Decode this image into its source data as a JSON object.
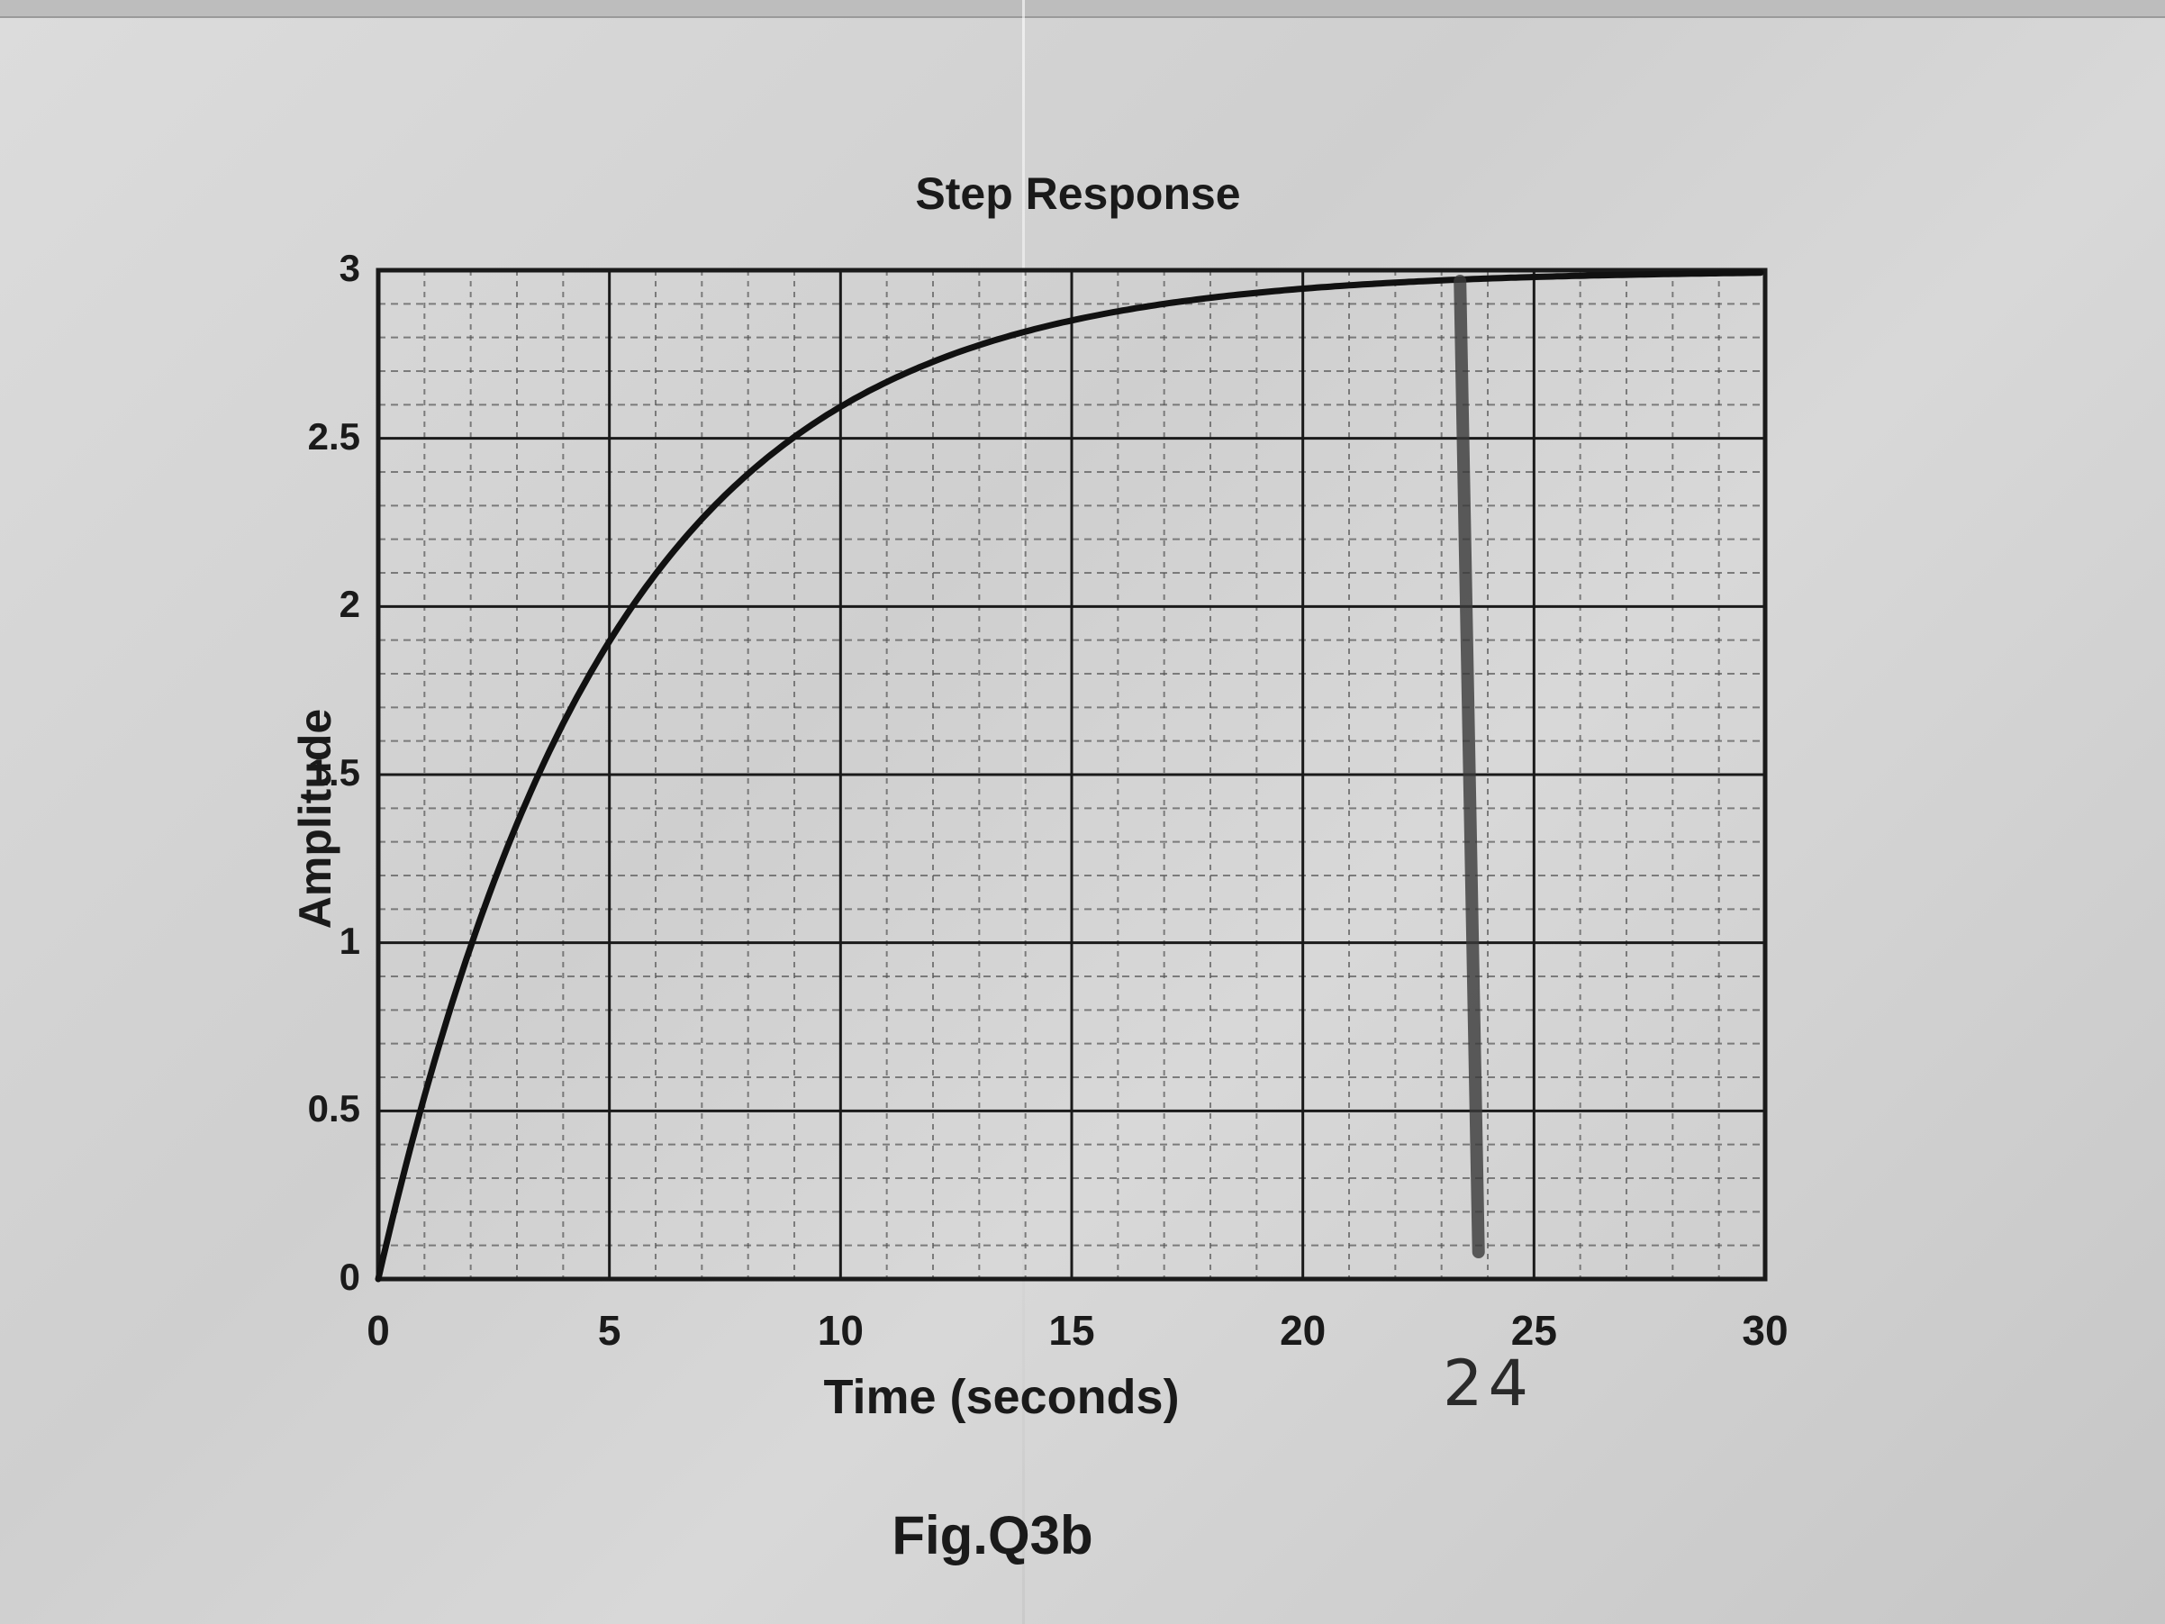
{
  "figure": {
    "caption": "Fig.Q3b"
  },
  "chart_data": {
    "type": "line",
    "title": "Step Response",
    "xlabel": "Time (seconds)",
    "ylabel": "Amplitude",
    "xlim": [
      0,
      30
    ],
    "ylim": [
      0,
      3
    ],
    "x_ticks": [
      "0",
      "5",
      "10",
      "15",
      "20",
      "25",
      "30"
    ],
    "y_ticks": [
      "0",
      "0.5",
      "1",
      "1.5",
      "2",
      "2.5",
      "3"
    ],
    "grid": {
      "major": true,
      "minor": true,
      "minor_x_step": 1,
      "minor_y_step": 0.1
    },
    "legend": "none",
    "series": [
      {
        "name": "step response",
        "model": "first-order, gain 3, time constant ~5 s",
        "x": [
          0,
          1,
          2,
          3,
          4,
          5,
          6,
          7,
          8,
          9,
          10,
          12,
          14,
          15,
          16,
          18,
          20,
          22,
          24
        ],
        "values": [
          0,
          0.54,
          0.99,
          1.35,
          1.65,
          1.9,
          2.1,
          2.26,
          2.39,
          2.5,
          2.59,
          2.73,
          2.82,
          2.85,
          2.88,
          2.92,
          2.95,
          2.96,
          2.98
        ]
      }
    ],
    "annotations": [
      {
        "type": "handwritten-vertical-line",
        "x": 24,
        "label": "24"
      }
    ]
  }
}
